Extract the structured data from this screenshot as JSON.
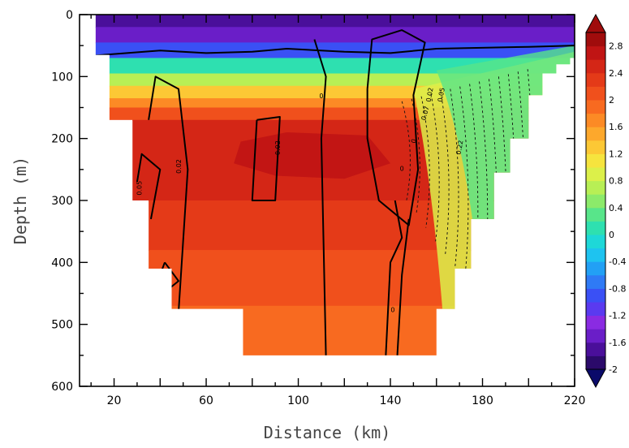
{
  "chart_data": {
    "type": "heatmap",
    "xlabel": "Distance (km)",
    "ylabel": "Depth (m)",
    "xlim": [
      5,
      220
    ],
    "ylim": [
      0,
      600
    ],
    "x_ticks": [
      "20",
      "60",
      "100",
      "140",
      "180",
      "220"
    ],
    "x_tick_values": [
      20,
      60,
      100,
      140,
      180,
      220
    ],
    "y_ticks": [
      "0",
      "100",
      "200",
      "300",
      "400",
      "500",
      "600"
    ],
    "y_tick_values": [
      0,
      100,
      200,
      300,
      400,
      500,
      600
    ],
    "colorbar": {
      "min": -2,
      "max": 3,
      "labels": [
        "2.8",
        "2.4",
        "2",
        "1.6",
        "1.2",
        "0.8",
        "0.4",
        "0",
        "-0.4",
        "-0.8",
        "-1.2",
        "-1.6",
        "-2"
      ],
      "label_values": [
        2.8,
        2.4,
        2.0,
        1.6,
        1.2,
        0.8,
        0.4,
        0,
        -0.4,
        -0.8,
        -1.2,
        -1.6,
        -2.0
      ],
      "colors": [
        "#2b0a6a",
        "#4a0f9a",
        "#6a1ec8",
        "#8a2be2",
        "#5a3af0",
        "#3a50f5",
        "#2f7af5",
        "#22a0f5",
        "#1ec3f0",
        "#1ed8d8",
        "#2ee0b0",
        "#58e58a",
        "#8cea6a",
        "#b8ef55",
        "#dcf04a",
        "#f6e43e",
        "#fcc835",
        "#fda82c",
        "#fc8a25",
        "#f86a20",
        "#f0501c",
        "#e43a18",
        "#d42616",
        "#c01414",
        "#a00c0c"
      ]
    },
    "contour_labels": [
      "0.02",
      "0.05",
      "0.02",
      "0",
      "0",
      "0",
      "0.07",
      "0.22",
      "0",
      "0.02",
      "0.05"
    ],
    "section_profile": [
      {
        "x": 12,
        "bottom": 65
      },
      {
        "x": 18,
        "bottom": 170
      },
      {
        "x": 28,
        "bottom": 300
      },
      {
        "x": 35,
        "bottom": 410
      },
      {
        "x": 45,
        "bottom": 475
      },
      {
        "x": 76,
        "bottom": 550
      },
      {
        "x": 155,
        "bottom": 550
      },
      {
        "x": 160,
        "bottom": 475
      },
      {
        "x": 168,
        "bottom": 410
      },
      {
        "x": 175,
        "bottom": 330
      },
      {
        "x": 185,
        "bottom": 255
      },
      {
        "x": 192,
        "bottom": 200
      },
      {
        "x": 200,
        "bottom": 130
      },
      {
        "x": 206,
        "bottom": 95
      },
      {
        "x": 212,
        "bottom": 80
      },
      {
        "x": 218,
        "bottom": 70
      },
      {
        "x": 220,
        "bottom": 65
      }
    ],
    "temperature_layers": [
      {
        "top": 0,
        "value": -1.7
      },
      {
        "top": 20,
        "value": -1.5
      },
      {
        "top": 45,
        "value": -1.0
      },
      {
        "top": 70,
        "value": 0.0
      },
      {
        "top": 95,
        "value": 0.6
      },
      {
        "top": 115,
        "value": 1.2
      },
      {
        "top": 135,
        "value": 1.7
      },
      {
        "top": 150,
        "value": 2.1
      },
      {
        "top": 170,
        "value": 2.4
      },
      {
        "top": 300,
        "value": 2.2
      },
      {
        "top": 380,
        "value": 2.0
      },
      {
        "top": 470,
        "value": 1.8
      }
    ],
    "warm_core": [
      {
        "x": 75,
        "y": 205
      },
      {
        "x": 95,
        "y": 190
      },
      {
        "x": 130,
        "y": 195
      },
      {
        "x": 140,
        "y": 240
      },
      {
        "x": 120,
        "y": 265
      },
      {
        "x": 90,
        "y": 260
      },
      {
        "x": 72,
        "y": 240
      }
    ]
  }
}
